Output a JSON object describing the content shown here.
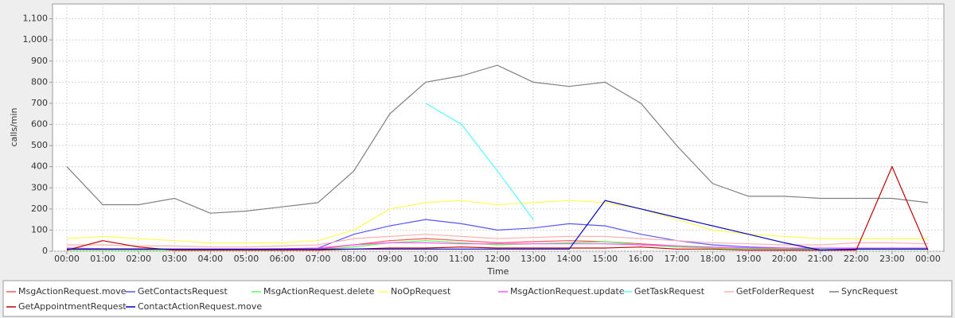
{
  "chart_data": {
    "type": "line",
    "ylabel": "calls/min",
    "xlabel": "Time",
    "categories": [
      "00:00",
      "01:00",
      "02:00",
      "03:00",
      "04:00",
      "05:00",
      "06:00",
      "07:00",
      "08:00",
      "09:00",
      "10:00",
      "11:00",
      "12:00",
      "13:00",
      "14:00",
      "15:00",
      "16:00",
      "17:00",
      "18:00",
      "19:00",
      "20:00",
      "21:00",
      "22:00",
      "23:00",
      "00:00"
    ],
    "ylim": [
      0,
      1170
    ],
    "yticks": [
      0,
      100,
      200,
      300,
      400,
      500,
      600,
      700,
      800,
      900,
      {
        "value": 1000,
        "label": "1,000"
      },
      {
        "value": 1100,
        "label": "1,100"
      }
    ],
    "grid": true,
    "series": [
      {
        "name": "MsgActionRequest.move",
        "color": "#ff5555",
        "values": [
          10,
          8,
          8,
          8,
          6,
          6,
          8,
          10,
          30,
          50,
          60,
          50,
          40,
          45,
          50,
          45,
          35,
          25,
          15,
          12,
          10,
          10,
          10,
          10,
          10
        ]
      },
      {
        "name": "GetContactsRequest",
        "color": "#5555ff",
        "values": [
          10,
          10,
          10,
          8,
          8,
          8,
          8,
          15,
          80,
          120,
          150,
          130,
          100,
          110,
          130,
          120,
          80,
          50,
          30,
          20,
          15,
          10,
          10,
          15,
          10
        ]
      },
      {
        "name": "MsgActionRequest.delete",
        "color": "#55ff55",
        "values": [
          5,
          5,
          5,
          5,
          5,
          5,
          5,
          8,
          20,
          40,
          50,
          40,
          30,
          35,
          40,
          45,
          30,
          20,
          15,
          10,
          8,
          8,
          8,
          8,
          8
        ]
      },
      {
        "name": "NoOpRequest",
        "color": "#ffff55",
        "values": [
          60,
          70,
          60,
          50,
          40,
          40,
          40,
          50,
          100,
          200,
          230,
          240,
          220,
          230,
          240,
          230,
          200,
          150,
          100,
          80,
          70,
          60,
          60,
          60,
          60
        ]
      },
      {
        "name": "MsgActionRequest.update",
        "color": "#ff55ff",
        "values": [
          15,
          12,
          12,
          10,
          10,
          10,
          12,
          15,
          30,
          40,
          40,
          35,
          35,
          35,
          35,
          35,
          30,
          25,
          20,
          15,
          15,
          15,
          15,
          15,
          15
        ]
      },
      {
        "name": "GetTaskRequest",
        "color": "#55ffff",
        "values": [
          null,
          null,
          null,
          null,
          null,
          null,
          null,
          null,
          null,
          null,
          700,
          600,
          380,
          150,
          null,
          null,
          null,
          null,
          null,
          null,
          null,
          null,
          null,
          null,
          null
        ]
      },
      {
        "name": "GetFolderRequest",
        "color": "#ffafaf",
        "values": [
          30,
          30,
          25,
          25,
          20,
          20,
          25,
          30,
          60,
          70,
          80,
          70,
          60,
          65,
          70,
          70,
          60,
          50,
          40,
          35,
          30,
          30,
          40,
          40,
          35
        ]
      },
      {
        "name": "SyncRequest",
        "color": "#808080",
        "values": [
          400,
          220,
          220,
          250,
          180,
          190,
          210,
          230,
          380,
          650,
          800,
          830,
          880,
          800,
          780,
          800,
          700,
          500,
          320,
          260,
          260,
          250,
          250,
          250,
          230
        ]
      },
      {
        "name": "GetAppointmentRequest",
        "color": "#c00000",
        "values": [
          5,
          50,
          20,
          5,
          5,
          5,
          5,
          5,
          10,
          15,
          15,
          20,
          15,
          15,
          15,
          15,
          20,
          10,
          10,
          5,
          5,
          5,
          5,
          400,
          5
        ]
      },
      {
        "name": "ContactActionRequest.move",
        "color": "#0000c0",
        "values": [
          10,
          10,
          10,
          10,
          10,
          10,
          10,
          10,
          10,
          10,
          10,
          10,
          10,
          10,
          10,
          240,
          200,
          160,
          120,
          80,
          40,
          5,
          10,
          10,
          10
        ]
      }
    ]
  }
}
